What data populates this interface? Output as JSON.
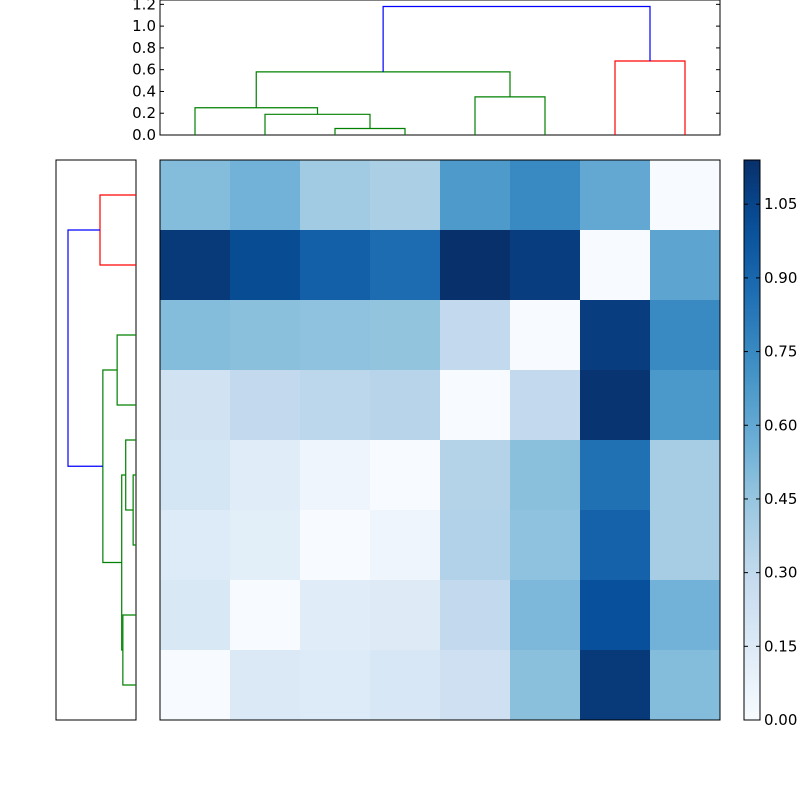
{
  "chart_data": [
    {
      "type": "dendrogram",
      "orientation": "top",
      "ylim": [
        0,
        1.24
      ],
      "yticks": [
        "0.0",
        "0.2",
        "0.4",
        "0.6",
        "0.8",
        "1.0",
        "1.2"
      ],
      "ytick_values": [
        0,
        0.2,
        0.4,
        0.6,
        0.8,
        1.0,
        1.2
      ],
      "leaf_count": 8,
      "links": [
        {
          "left": 3.5,
          "right": 4.5,
          "height": 0.06,
          "color": "#008000",
          "left_base": 0,
          "right_base": 0
        },
        {
          "left": 2.5,
          "right": 4.0,
          "height": 0.19,
          "color": "#008000",
          "left_base": 0,
          "right_base": 0.06
        },
        {
          "left": 1.5,
          "right": 3.25,
          "height": 0.25,
          "color": "#008000",
          "left_base": 0,
          "right_base": 0.19
        },
        {
          "left": 5.5,
          "right": 6.5,
          "height": 0.35,
          "color": "#008000",
          "left_base": 0,
          "right_base": 0
        },
        {
          "left": 2.375,
          "right": 6.0,
          "height": 0.58,
          "color": "#008000",
          "left_base": 0.25,
          "right_base": 0.35
        },
        {
          "left": 7.5,
          "right": 8.5,
          "height": 0.68,
          "color": "#ff0000",
          "left_base": 0,
          "right_base": 0
        },
        {
          "left": 4.1875,
          "right": 8.0,
          "height": 1.18,
          "color": "#0000ff",
          "left_base": 0.58,
          "right_base": 0.68
        }
      ]
    },
    {
      "type": "dendrogram",
      "orientation": "left",
      "xlim": [
        1.4,
        0
      ],
      "leaf_count": 8,
      "links": [
        {
          "left": 1.5,
          "right": 2.5,
          "height": 0.63,
          "color": "#ff0000",
          "left_base": 0,
          "right_base": 0
        },
        {
          "left": 3.5,
          "right": 4.5,
          "height": 0.33,
          "color": "#008000",
          "left_base": 0,
          "right_base": 0
        },
        {
          "left": 5.5,
          "right": 6.5,
          "height": 0.05,
          "color": "#008000",
          "left_base": 0,
          "right_base": 0
        },
        {
          "left": 5.0,
          "right": 6.0,
          "height": 0.18,
          "color": "#008000",
          "left_base": 0,
          "right_base": 0.05
        },
        {
          "left": 7.5,
          "right": 8.5,
          "height": 0.23,
          "color": "#008000",
          "left_base": 0,
          "right_base": 0
        },
        {
          "left": 5.5,
          "right": 8.0,
          "height": 0.25,
          "color": "#008000",
          "left_base": 0.18,
          "right_base": 0.23
        },
        {
          "left": 4.0,
          "right": 6.75,
          "height": 0.58,
          "color": "#008000",
          "left_base": 0.33,
          "right_base": 0.25
        },
        {
          "left": 2.0,
          "right": 5.375,
          "height": 1.19,
          "color": "#0000ff",
          "left_base": 0.63,
          "right_base": 0.58
        }
      ]
    },
    {
      "type": "heatmap",
      "rows": 8,
      "cols": 8,
      "vmin": 0,
      "vmax": 1.14,
      "cmap": "Blues",
      "values": [
        [
          0.5,
          0.55,
          0.42,
          0.38,
          0.67,
          0.75,
          0.6,
          0.0
        ],
        [
          1.1,
          1.02,
          0.93,
          0.88,
          1.14,
          1.08,
          0.0,
          0.62
        ],
        [
          0.5,
          0.48,
          0.47,
          0.46,
          0.3,
          0.0,
          1.08,
          0.75
        ],
        [
          0.22,
          0.3,
          0.32,
          0.34,
          0.0,
          0.3,
          1.12,
          0.68
        ],
        [
          0.2,
          0.13,
          0.05,
          0.0,
          0.35,
          0.48,
          0.86,
          0.4
        ],
        [
          0.15,
          0.12,
          0.0,
          0.05,
          0.36,
          0.47,
          0.92,
          0.4
        ],
        [
          0.17,
          0.0,
          0.13,
          0.14,
          0.3,
          0.52,
          1.0,
          0.55
        ],
        [
          0.0,
          0.16,
          0.15,
          0.18,
          0.24,
          0.48,
          1.1,
          0.5
        ]
      ]
    },
    {
      "type": "colorbar",
      "vmin": 0,
      "vmax": 1.14,
      "ticks": [
        "0.00",
        "0.15",
        "0.30",
        "0.45",
        "0.60",
        "0.75",
        "0.90",
        "1.05"
      ],
      "tick_values": [
        0,
        0.15,
        0.3,
        0.45,
        0.6,
        0.75,
        0.9,
        1.05
      ]
    }
  ]
}
